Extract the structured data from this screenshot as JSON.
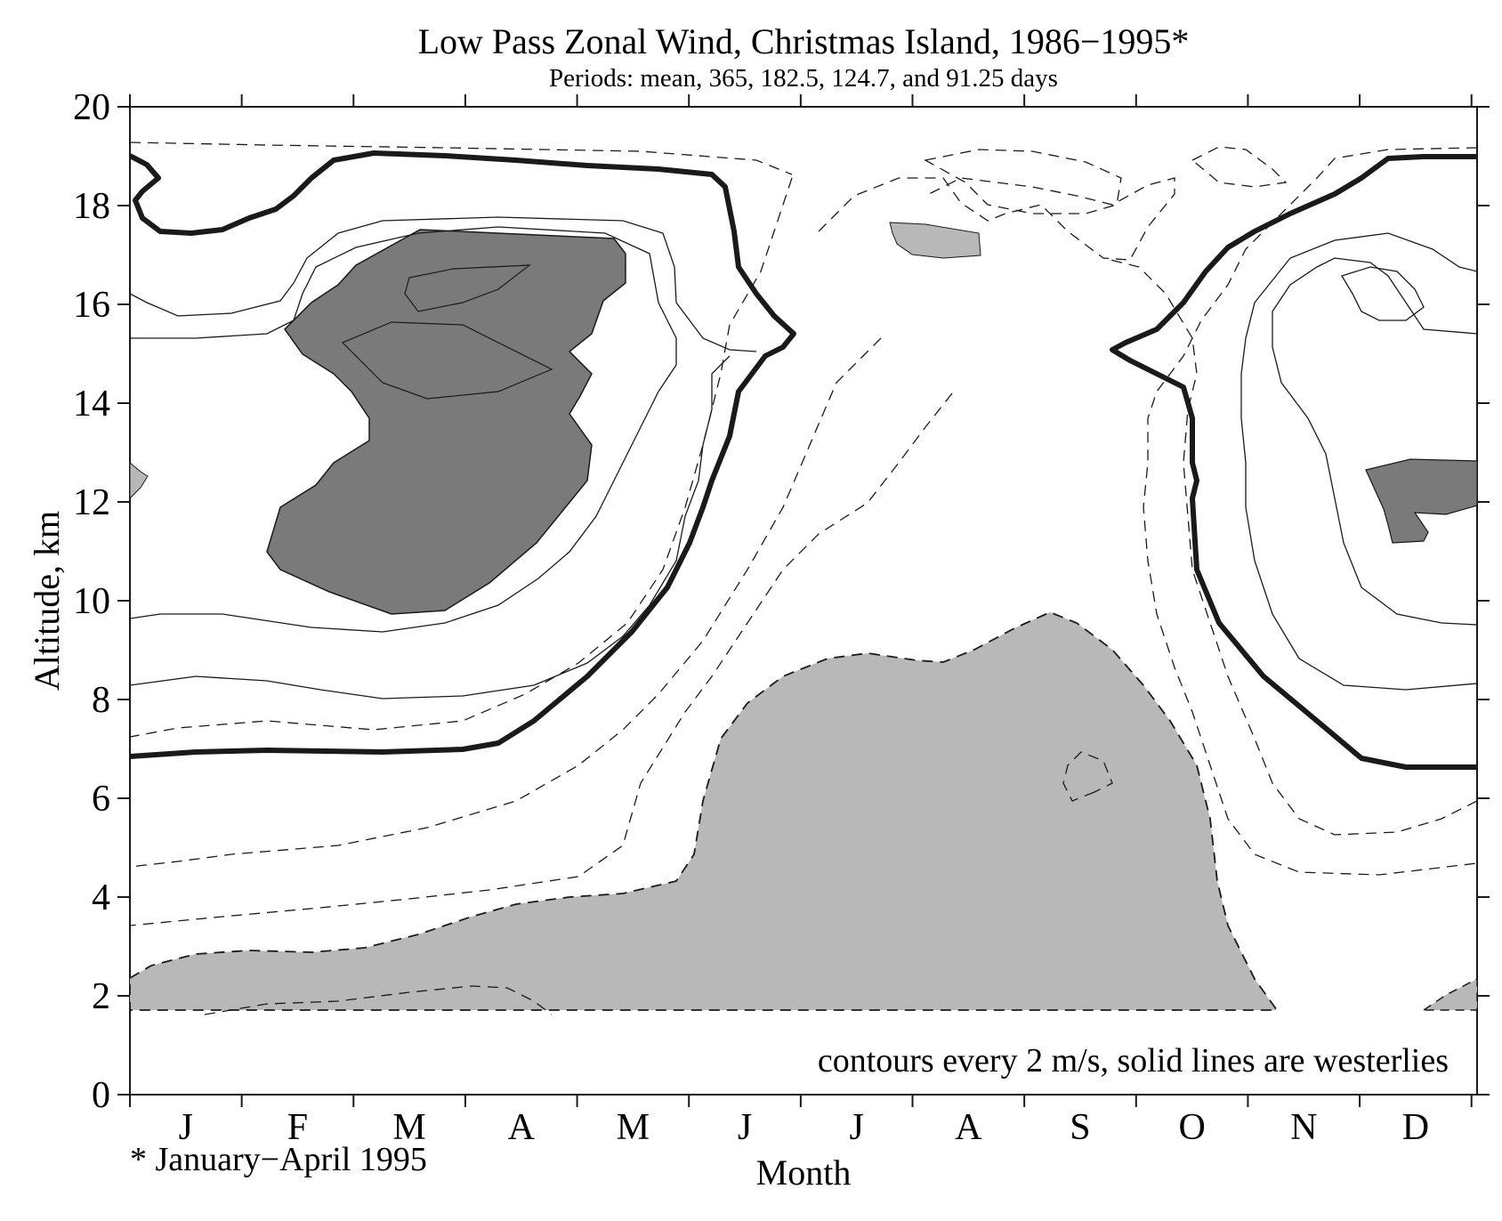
{
  "chart_data": {
    "type": "contour",
    "title": "Low Pass Zonal Wind, Christmas Island, 1986−1995*",
    "subtitle": "Periods: mean, 365, 182.5, 124.7, and 91.25 days",
    "xlabel": "Month",
    "ylabel": "Altitude, km",
    "x_categories": [
      "J",
      "F",
      "M",
      "A",
      "M",
      "J",
      "J",
      "A",
      "S",
      "O",
      "N",
      "D"
    ],
    "ylim": [
      0,
      20
    ],
    "y_ticks": [
      0,
      2,
      4,
      6,
      8,
      10,
      12,
      14,
      16,
      18,
      20
    ],
    "y_tick_labels": [
      "0",
      "2",
      "4",
      "6",
      "8",
      "10",
      "12",
      "14",
      "16",
      "18",
      "20"
    ],
    "data_min_altitude_km": 1.7,
    "data_max_altitude_km": 19.3,
    "contour_interval_m_s": 2,
    "annotation": "contours every 2 m/s, solid lines are westerlies",
    "footnote": "* January−April 1995",
    "colors": {
      "shading": "#b8b8b8",
      "dark_shading": "#7a7a7a",
      "line": "#1a1a1a",
      "background": "#ffffff"
    },
    "features": [
      {
        "name": "westerly maximum core",
        "months": "Feb–Apr",
        "altitude_km": [
          9.7,
          17.5
        ],
        "shaded": true
      },
      {
        "name": "easterly maximum",
        "months": "Jun–Oct",
        "altitude_km": [
          1.7,
          9.7
        ],
        "shaded": true
      },
      {
        "name": "westerly maximum",
        "months": "Nov–Dec",
        "altitude_km": [
          11.0,
          12.9
        ],
        "shaded": true
      },
      {
        "name": "zero-wind contour",
        "style": "bold solid"
      }
    ]
  }
}
